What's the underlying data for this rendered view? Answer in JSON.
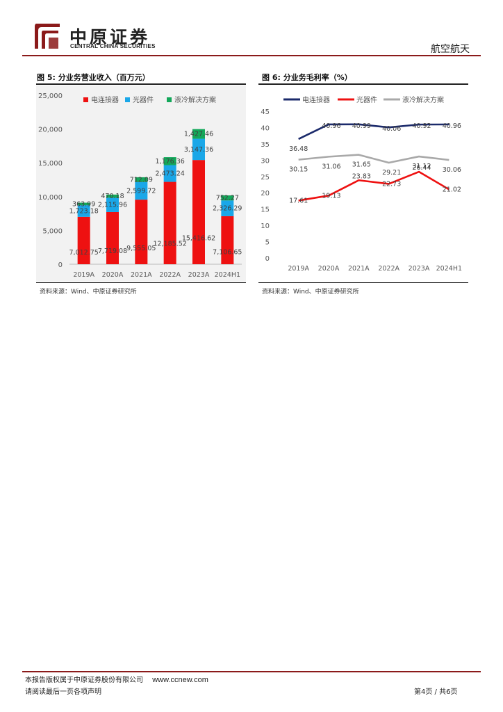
{
  "header": {
    "company_cn": "中原证券",
    "company_en": "CENTRAL CHINA SECURITIES",
    "industry": "航空航天",
    "colors": {
      "brand": "#8b1a1a"
    }
  },
  "figures": [
    {
      "title": "图 5:  分业务营业收入（百万元）",
      "source": "资料来源：Wind、中原证券研究所"
    },
    {
      "title": "图 6:  分业务毛利率（%）",
      "source": "资料来源：Wind、中原证券研究所"
    }
  ],
  "chart_data": [
    {
      "type": "bar",
      "stacked": true,
      "title": "分业务营业收入（百万元）",
      "categories": [
        "2019A",
        "2020A",
        "2021A",
        "2022A",
        "2023A",
        "2024H1"
      ],
      "series": [
        {
          "name": "电连接器",
          "color": "#ee1111",
          "values": [
            7012.75,
            7719.08,
            9555.05,
            12185.52,
            15416.62,
            7106.65
          ],
          "labels": [
            "7,012.75",
            "7,719.08",
            "9,555.05",
            "12,185.52",
            "15,416.62",
            "7,106.65"
          ]
        },
        {
          "name": "光器件",
          "color": "#1aa7e8",
          "values": [
            1723.18,
            2115.96,
            2599.72,
            2473.24,
            3147.36,
            2326.29
          ],
          "labels": [
            "1,723.18",
            "2,115.96",
            "2,599.72",
            "2,473.24",
            "3,147.36",
            "2,326.29"
          ]
        },
        {
          "name": "液冷解决方案",
          "color": "#13a85a",
          "values": [
            363.99,
            470.18,
            712.09,
            1176.36,
            1427.46,
            752.27
          ],
          "labels": [
            "363.99",
            "470.18",
            "712.09",
            "1,176.36",
            "1,427.46",
            "752.27"
          ]
        }
      ],
      "ylim": [
        0,
        25000
      ],
      "yticks": [
        0,
        5000,
        10000,
        15000,
        20000,
        25000
      ],
      "ytick_labels": [
        "0",
        "5,000",
        "10,000",
        "15,000",
        "20,000",
        "25,000"
      ],
      "legend": "top"
    },
    {
      "type": "line",
      "title": "分业务毛利率（%）",
      "categories": [
        "2019A",
        "2020A",
        "2021A",
        "2022A",
        "2023A",
        "2024H1"
      ],
      "series": [
        {
          "name": "电连接器",
          "color": "#1b2a6b",
          "values": [
            36.48,
            40.96,
            40.99,
            40.06,
            40.92,
            40.96
          ],
          "labels": [
            "36.48",
            "40.96",
            "40.99",
            "40.06",
            "40.92",
            "40.96"
          ]
        },
        {
          "name": "光器件",
          "color": "#ee1111",
          "values": [
            17.61,
            19.13,
            23.83,
            22.73,
            26.44,
            21.02
          ],
          "labels": [
            "17.61",
            "19.13",
            "23.83",
            "22.73",
            "26.44",
            "21.02"
          ]
        },
        {
          "name": "液冷解决方案",
          "color": "#a9a9a9",
          "values": [
            30.15,
            31.06,
            31.65,
            29.21,
            31.12,
            30.06
          ],
          "labels": [
            "30.15",
            "31.06",
            "31.65",
            "29.21",
            "31.12",
            "30.06"
          ]
        }
      ],
      "ylim": [
        0,
        45
      ],
      "yticks": [
        0,
        5,
        10,
        15,
        20,
        25,
        30,
        35,
        40,
        45
      ],
      "ytick_labels": [
        "0",
        "5",
        "10",
        "15",
        "20",
        "25",
        "30",
        "35",
        "40",
        "45"
      ],
      "legend": "top"
    }
  ],
  "footer": {
    "copyright": "本报告版权属于中原证券股份有限公司",
    "website": "www.ccnew.com",
    "disclaimer": "请阅读最后一页各项声明",
    "page": "第4页  /  共6页"
  }
}
